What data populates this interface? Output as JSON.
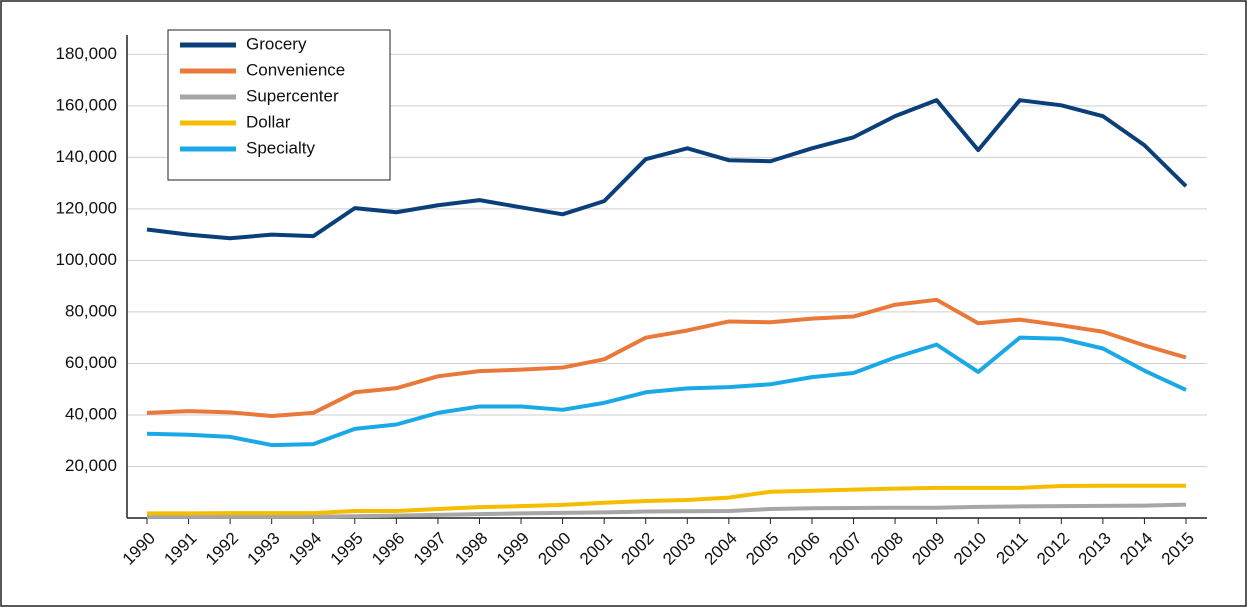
{
  "chart_data": {
    "type": "line",
    "categories": [
      "1990",
      "1991",
      "1992",
      "1993",
      "1994",
      "1995",
      "1996",
      "1997",
      "1998",
      "1999",
      "2000",
      "2001",
      "2002",
      "2003",
      "2004",
      "2005",
      "2006",
      "2007",
      "2008",
      "2009",
      "2010",
      "2011",
      "2012",
      "2013",
      "2014",
      "2015"
    ],
    "series": [
      {
        "name": "Grocery",
        "color": "#0b3f7a",
        "values": [
          112000,
          110000,
          108600,
          110000,
          109400,
          120300,
          118700,
          121400,
          123400,
          120600,
          117900,
          123000,
          139300,
          143500,
          138900,
          138500,
          143500,
          147800,
          156000,
          162200,
          142800,
          162200,
          160200,
          156000,
          144700,
          128800
        ]
      },
      {
        "name": "Convenience",
        "color": "#e8793a",
        "values": [
          40800,
          41500,
          41000,
          39600,
          40800,
          48800,
          50400,
          55000,
          57000,
          57600,
          58400,
          61600,
          70000,
          72800,
          76300,
          76000,
          77400,
          78200,
          82800,
          84700,
          75600,
          77000,
          74800,
          72300,
          67000,
          62300
        ]
      },
      {
        "name": "Supercenter",
        "color": "#a6a6a6",
        "values": [
          500,
          500,
          500,
          500,
          500,
          700,
          900,
          1200,
          1500,
          1800,
          2000,
          2200,
          2500,
          2600,
          2700,
          3500,
          3800,
          3900,
          4000,
          4000,
          4300,
          4500,
          4600,
          4700,
          4800,
          5200
        ]
      },
      {
        "name": "Dollar",
        "color": "#f5bd00",
        "values": [
          1800,
          1800,
          1900,
          1900,
          1900,
          2700,
          2700,
          3500,
          4200,
          4600,
          5100,
          5900,
          6600,
          7000,
          7900,
          10200,
          10600,
          11000,
          11400,
          11700,
          11700,
          11700,
          12400,
          12500,
          12500,
          12500
        ]
      },
      {
        "name": "Specialty",
        "color": "#1aa9e6",
        "values": [
          32700,
          32300,
          31500,
          28300,
          28700,
          34600,
          36300,
          40800,
          43300,
          43300,
          42000,
          44700,
          48800,
          50300,
          50800,
          51900,
          54700,
          56300,
          62300,
          67300,
          56700,
          70000,
          69600,
          65800,
          57200,
          49700
        ]
      }
    ],
    "ylim": [
      0,
      187500
    ],
    "yticks": [
      {
        "value": 20000,
        "label": "20,000"
      },
      {
        "value": 40000,
        "label": "40,000"
      },
      {
        "value": 60000,
        "label": "60,000"
      },
      {
        "value": 80000,
        "label": "80,000"
      },
      {
        "value": 100000,
        "label": "100,000"
      },
      {
        "value": 120000,
        "label": "120,000"
      },
      {
        "value": 140000,
        "label": "140,000"
      },
      {
        "value": 160000,
        "label": "160,000"
      },
      {
        "value": 180000,
        "label": "180,000"
      }
    ],
    "grid": true,
    "legend": "upper left"
  }
}
